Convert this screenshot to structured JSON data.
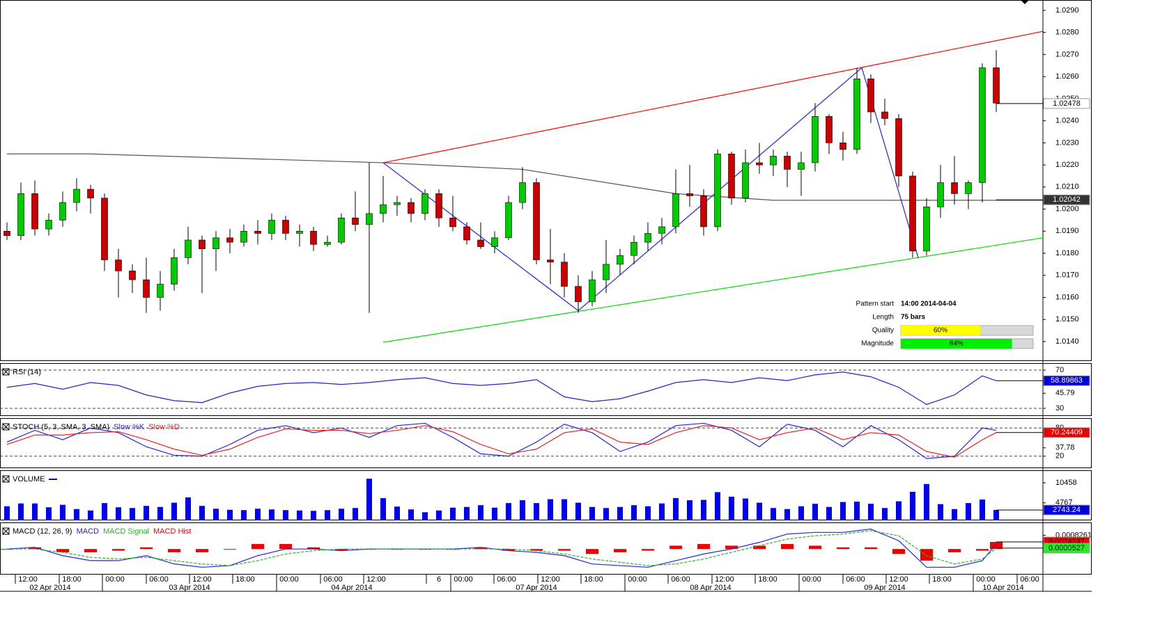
{
  "chart_data": [
    {
      "type": "candlestick",
      "bull_color": "#00cc00",
      "bear_color": "#cc0000",
      "ohlc": [
        [
          1.019,
          1.0194,
          1.0186,
          1.0188
        ],
        [
          1.0188,
          1.0212,
          1.0186,
          1.0207
        ],
        [
          1.0207,
          1.0213,
          1.0188,
          1.0191
        ],
        [
          1.0191,
          1.0198,
          1.0188,
          1.0195
        ],
        [
          1.0195,
          1.0208,
          1.0192,
          1.0203
        ],
        [
          1.0203,
          1.0214,
          1.0199,
          1.0209
        ],
        [
          1.0209,
          1.0211,
          1.0198,
          1.0205
        ],
        [
          1.0205,
          1.0207,
          1.0172,
          1.0177
        ],
        [
          1.0177,
          1.0182,
          1.016,
          1.0172
        ],
        [
          1.0172,
          1.0175,
          1.0162,
          1.0168
        ],
        [
          1.0168,
          1.0178,
          1.0153,
          1.016
        ],
        [
          1.016,
          1.0172,
          1.0154,
          1.0166
        ],
        [
          1.0166,
          1.0182,
          1.0163,
          1.0178
        ],
        [
          1.0178,
          1.0192,
          1.0175,
          1.0186
        ],
        [
          1.0186,
          1.0188,
          1.0162,
          1.0182
        ],
        [
          1.0182,
          1.019,
          1.0172,
          1.0187
        ],
        [
          1.0187,
          1.0191,
          1.018,
          1.0185
        ],
        [
          1.0185,
          1.0193,
          1.0183,
          1.019
        ],
        [
          1.019,
          1.0195,
          1.0184,
          1.0189
        ],
        [
          1.0189,
          1.0198,
          1.0186,
          1.0195
        ],
        [
          1.0195,
          1.0197,
          1.0186,
          1.0189
        ],
        [
          1.0189,
          1.0193,
          1.0183,
          1.019
        ],
        [
          1.019,
          1.0192,
          1.0181,
          1.0184
        ],
        [
          1.0184,
          1.0188,
          1.0183,
          1.0185
        ],
        [
          1.0185,
          1.0198,
          1.0184,
          1.0196
        ],
        [
          1.0196,
          1.0208,
          1.019,
          1.0193
        ],
        [
          1.0193,
          1.0221,
          1.0153,
          1.0198
        ],
        [
          1.0198,
          1.0215,
          1.0194,
          1.0202
        ],
        [
          1.0202,
          1.0206,
          1.0197,
          1.0203
        ],
        [
          1.0203,
          1.0205,
          1.0194,
          1.0198
        ],
        [
          1.0198,
          1.0209,
          1.0195,
          1.0207
        ],
        [
          1.0207,
          1.0209,
          1.0192,
          1.0196
        ],
        [
          1.0196,
          1.0206,
          1.019,
          1.0192
        ],
        [
          1.0192,
          1.0194,
          1.0184,
          1.0186
        ],
        [
          1.0186,
          1.0194,
          1.0182,
          1.0183
        ],
        [
          1.0183,
          1.019,
          1.018,
          1.0187
        ],
        [
          1.0187,
          1.0206,
          1.0186,
          1.0203
        ],
        [
          1.0203,
          1.0219,
          1.02,
          1.0212
        ],
        [
          1.0212,
          1.0214,
          1.0175,
          1.0177
        ],
        [
          1.0177,
          1.0191,
          1.0166,
          1.0176
        ],
        [
          1.0176,
          1.018,
          1.016,
          1.0165
        ],
        [
          1.0165,
          1.017,
          1.0153,
          1.0158
        ],
        [
          1.0158,
          1.0172,
          1.0156,
          1.0168
        ],
        [
          1.0168,
          1.0186,
          1.0162,
          1.0175
        ],
        [
          1.0175,
          1.0182,
          1.017,
          1.0179
        ],
        [
          1.0179,
          1.0188,
          1.0175,
          1.0185
        ],
        [
          1.0185,
          1.0194,
          1.0181,
          1.0189
        ],
        [
          1.0189,
          1.0196,
          1.0184,
          1.0192
        ],
        [
          1.0192,
          1.0218,
          1.0189,
          1.0207
        ],
        [
          1.0207,
          1.022,
          1.0201,
          1.0206
        ],
        [
          1.0206,
          1.0209,
          1.0188,
          1.0192
        ],
        [
          1.0192,
          1.0227,
          1.019,
          1.0225
        ],
        [
          1.0225,
          1.0226,
          1.0202,
          1.0205
        ],
        [
          1.0205,
          1.0227,
          1.0203,
          1.0221
        ],
        [
          1.0221,
          1.023,
          1.0216,
          1.022
        ],
        [
          1.022,
          1.0227,
          1.0215,
          1.0224
        ],
        [
          1.0224,
          1.0226,
          1.021,
          1.0218
        ],
        [
          1.0218,
          1.0226,
          1.0206,
          1.0221
        ],
        [
          1.0221,
          1.0248,
          1.0217,
          1.0242
        ],
        [
          1.0242,
          1.0243,
          1.0225,
          1.023
        ],
        [
          1.023,
          1.0235,
          1.0222,
          1.0227
        ],
        [
          1.0227,
          1.0264,
          1.0225,
          1.0259
        ],
        [
          1.0259,
          1.0261,
          1.0239,
          1.0244
        ],
        [
          1.0244,
          1.025,
          1.0238,
          1.0241
        ],
        [
          1.0241,
          1.0243,
          1.021,
          1.0215
        ],
        [
          1.0215,
          1.0217,
          1.0178,
          1.0181
        ],
        [
          1.0181,
          1.0205,
          1.0179,
          1.0201
        ],
        [
          1.0201,
          1.022,
          1.0196,
          1.0212
        ],
        [
          1.0212,
          1.0224,
          1.0202,
          1.0207
        ],
        [
          1.0207,
          1.0213,
          1.02,
          1.0212
        ],
        [
          1.0212,
          1.0266,
          1.0203,
          1.0264
        ],
        [
          1.0264,
          1.0272,
          1.0244,
          1.0248
        ]
      ],
      "ylim": [
        1.01315,
        1.02947
      ],
      "yticks": [
        {
          "value": 1.029,
          "label": "1.0290"
        },
        {
          "value": 1.028,
          "label": "1.0280"
        },
        {
          "value": 1.027,
          "label": "1.0270"
        },
        {
          "value": 1.026,
          "label": "1.0260"
        },
        {
          "value": 1.025,
          "label": "1.0250"
        },
        {
          "value": 1.024,
          "label": "1.0240"
        },
        {
          "value": 1.023,
          "label": "1.0230"
        },
        {
          "value": 1.022,
          "label": "1.0220"
        },
        {
          "value": 1.021,
          "label": "1.0210"
        },
        {
          "value": 1.02,
          "label": "1.0200"
        },
        {
          "value": 1.019,
          "label": "1.0190"
        },
        {
          "value": 1.018,
          "label": "1.0180"
        },
        {
          "value": 1.017,
          "label": "1.0170"
        },
        {
          "value": 1.016,
          "label": "1.0160"
        },
        {
          "value": 1.015,
          "label": "1.0150"
        },
        {
          "value": 1.014,
          "label": "1.0140"
        }
      ],
      "lines": [
        {
          "color": "#555555",
          "x": [
            0,
            6,
            27,
            37,
            48,
            55,
            65,
            74.35
          ],
          "values": [
            1.0225,
            1.0225,
            1.0221,
            1.0218,
            1.0207,
            1.0204,
            1.0204,
            1.0204
          ]
        },
        {
          "color": "#ff0000",
          "x": [
            27,
            74.35
          ],
          "values": [
            1.0221,
            1.02805
          ]
        },
        {
          "color": "#00dd00",
          "x": [
            27,
            74.35
          ],
          "values": [
            1.01397,
            1.0187
          ]
        },
        {
          "color": "#2222ee",
          "x": [
            27,
            41,
            61.35,
            65.4
          ],
          "values": [
            1.0221,
            1.0154,
            1.0264,
            1.0178
          ]
        }
      ],
      "current": [
        {
          "value": 1.02478,
          "color": "#ffffff",
          "text_color": "#000000"
        },
        {
          "value": 1.02042,
          "color": "#333333",
          "text_color": "#ffffff"
        }
      ],
      "pattern": {
        "labels": [
          "Pattern start",
          "Length",
          "Quality",
          "Magnitude"
        ],
        "pattern_start": "14:00 2014-04-04",
        "length": "75 bars",
        "quality": 60,
        "quality_label": "60%",
        "magnitude": 84,
        "magnitude_label": "84%"
      }
    },
    {
      "type": "line",
      "title": "RSI (14)",
      "ylim": [
        22.73,
        77.27
      ],
      "levels": [
        70,
        30
      ],
      "yticks": [
        70,
        45.79,
        30
      ],
      "series": [
        {
          "name": "RSI",
          "color": "#2222cc",
          "x": [
            0,
            2,
            4,
            6,
            8,
            10,
            12,
            14,
            16,
            18,
            20,
            22,
            24,
            26,
            28,
            30,
            32,
            34,
            36,
            38,
            40,
            42,
            44,
            46,
            48,
            50,
            52,
            54,
            56,
            58,
            60,
            62,
            64,
            66,
            68,
            70,
            71
          ],
          "values": [
            52,
            56,
            50,
            57,
            54,
            44,
            38,
            36,
            46,
            53,
            56,
            57,
            55,
            57,
            60,
            62,
            56,
            54,
            56,
            60,
            42,
            37,
            40,
            48,
            57,
            60,
            57,
            62,
            59,
            65,
            68,
            63,
            52,
            34,
            44,
            64,
            58.89863
          ]
        }
      ],
      "current": [
        {
          "series": 0,
          "color": "#0000dd",
          "text_color": "#ffffff"
        }
      ]
    },
    {
      "type": "line",
      "title": "STOCH (5, 3, SMA, 3, SMA)",
      "ylim": [
        -4,
        101
      ],
      "levels": [
        80,
        20
      ],
      "yticks": [
        80,
        37.78,
        20
      ],
      "series": [
        {
          "name": "Slow %K",
          "color": "#2222ee",
          "x": [
            0,
            2,
            4,
            6,
            8,
            10,
            12,
            14,
            16,
            18,
            20,
            22,
            24,
            26,
            28,
            30,
            32,
            34,
            36,
            38,
            40,
            42,
            44,
            46,
            48,
            50,
            52,
            54,
            56,
            58,
            60,
            62,
            64,
            66,
            68,
            70,
            71
          ],
          "values": [
            50,
            75,
            55,
            80,
            70,
            40,
            22,
            20,
            45,
            75,
            85,
            70,
            80,
            60,
            85,
            90,
            60,
            25,
            20,
            50,
            88,
            70,
            30,
            50,
            85,
            90,
            75,
            40,
            88,
            75,
            40,
            85,
            55,
            15,
            20,
            80,
            75
          ]
        },
        {
          "name": "Slow %D",
          "color": "#ee2222",
          "x": [
            0,
            2,
            4,
            6,
            8,
            10,
            12,
            14,
            16,
            18,
            20,
            22,
            24,
            26,
            28,
            30,
            32,
            34,
            36,
            38,
            40,
            42,
            44,
            46,
            48,
            50,
            52,
            54,
            56,
            58,
            60,
            62,
            64,
            66,
            68,
            70,
            71
          ],
          "values": [
            45,
            65,
            65,
            70,
            72,
            55,
            35,
            22,
            35,
            60,
            78,
            75,
            75,
            68,
            75,
            85,
            72,
            45,
            25,
            35,
            70,
            78,
            50,
            45,
            70,
            85,
            80,
            55,
            70,
            80,
            55,
            70,
            65,
            30,
            18,
            55,
            70.24409
          ]
        }
      ],
      "current": [
        {
          "series": 1,
          "color": "#ee0000",
          "text_color": "#ffffff"
        }
      ]
    },
    {
      "type": "volume",
      "title": "VOLUME",
      "color": "#0000ee",
      "ylim": [
        0,
        14000
      ],
      "yticks": [
        10458,
        4767
      ],
      "values": [
        3800,
        4600,
        4600,
        3500,
        4200,
        3000,
        2600,
        4700,
        3500,
        3300,
        3900,
        3600,
        4800,
        6300,
        3900,
        3100,
        2800,
        2700,
        3100,
        2900,
        2700,
        2600,
        2500,
        2700,
        3100,
        3300,
        11600,
        6100,
        3700,
        2900,
        2100,
        2600,
        3400,
        3600,
        4100,
        3400,
        4700,
        5500,
        4700,
        5800,
        5800,
        4800,
        3600,
        3300,
        3600,
        4100,
        3800,
        4600,
        6100,
        5500,
        5600,
        7800,
        6500,
        6000,
        4800,
        3300,
        3000,
        3800,
        4500,
        3600,
        5000,
        5100,
        4500,
        3300,
        5200,
        7900,
        10100,
        4400,
        3000,
        4700,
        5700,
        2743.24
      ],
      "current_color": "#0000dd"
    },
    {
      "type": "macd",
      "title": "MACD (12, 26, 9)",
      "ylim": [
        -0.0015,
        0.0016
      ],
      "yticks": [
        0.0008261
      ],
      "x": [
        0,
        2,
        4,
        6,
        8,
        10,
        12,
        14,
        16,
        18,
        20,
        22,
        24,
        26,
        28,
        30,
        32,
        34,
        36,
        38,
        40,
        42,
        44,
        46,
        48,
        50,
        52,
        54,
        56,
        58,
        60,
        62,
        64,
        66,
        68,
        70,
        71
      ],
      "series": [
        {
          "name": "MACD",
          "color": "#2222ee",
          "values": [
            0,
            0.0001,
            -0.0004,
            -0.0007,
            -0.0007,
            -0.0004,
            -0.0009,
            -0.0011,
            -0.001,
            -0.0004,
            0,
            0,
            -0.0001,
            0,
            0,
            0,
            0,
            0.0001,
            -0.0001,
            -0.0002,
            -0.0004,
            -0.0009,
            -0.001,
            -0.0011,
            -0.0007,
            -0.0003,
            0,
            0.0004,
            0.0009,
            0.001,
            0.001,
            0.0012,
            0.0005,
            -0.0011,
            -0.0011,
            -0.0007,
            0.0003
          ]
        },
        {
          "name": "MACD Signal",
          "color": "#22bb22",
          "values": [
            0,
            0,
            -0.0002,
            -0.0005,
            -0.0006,
            -0.0005,
            -0.0007,
            -0.0009,
            -0.001,
            -0.0007,
            -0.0003,
            -0.0001,
            0,
            0,
            0,
            0,
            0,
            0,
            0,
            -0.0001,
            -0.0003,
            -0.0006,
            -0.0008,
            -0.001,
            -0.0009,
            -0.0006,
            -0.0002,
            0.0002,
            0.0006,
            0.0008,
            0.0009,
            0.0011,
            0.0008,
            -0.0004,
            -0.0009,
            -0.0006,
            5.27e-05
          ]
        },
        {
          "name": "MACD Hist",
          "color": "#ee0000",
          "values": [
            0,
            0.0001,
            -0.0002,
            -0.0002,
            -0.0001,
            0.0001,
            -0.0002,
            -0.0002,
            0,
            0.0003,
            0.0003,
            0.0001,
            -0.0001,
            0,
            0,
            0,
            0,
            0.0001,
            -0.0001,
            -0.0001,
            -0.0001,
            -0.0003,
            -0.0002,
            -0.0001,
            0.0002,
            0.0003,
            0.0002,
            0.0002,
            0.0003,
            0.0002,
            0.0001,
            0.0001,
            -0.0003,
            -0.0007,
            -0.0002,
            -0.0001,
            0.0004247
          ]
        }
      ]
    }
  ],
  "time_axis": {
    "times": [
      "12:00",
      "18:00",
      "00:00",
      "06:00",
      "12:00",
      "18:00",
      "00:00",
      "06:00",
      "12:00",
      "6",
      "00:00",
      "06:00",
      "12:00",
      "18:00",
      "00:00",
      "06:00",
      "12:00",
      "18:00",
      "00:00",
      "06:00",
      "12:00",
      "18:00",
      "00:00",
      "06:00"
    ],
    "dates": [
      "02 Apr 2014",
      "03 Apr 2014",
      "04 Apr 2014",
      "07 Apr 2014",
      "08 Apr 2014",
      "09 Apr 2014",
      "10 Apr 2014"
    ]
  }
}
